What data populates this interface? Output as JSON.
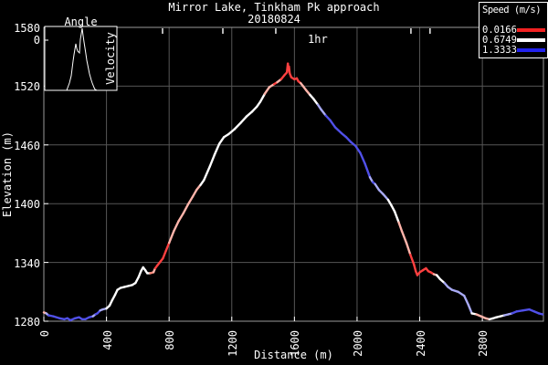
{
  "page": {
    "background": "#000000",
    "text_color": "#ffffff"
  },
  "chart_data": {
    "type": "line",
    "title": "Mirror Lake, Tinkham Pk approach",
    "subtitle": "20180824",
    "xlabel": "Distance (m)",
    "ylabel": "Elevation (m)",
    "xlim": [
      0,
      3190
    ],
    "ylim": [
      1280,
      1580
    ],
    "xticks": [
      0,
      400,
      800,
      1200,
      1600,
      2000,
      2400,
      2800
    ],
    "yticks": [
      1280,
      1340,
      1400,
      1460,
      1520,
      1580
    ],
    "grid": true,
    "grid_color": "#565656",
    "border_color": "#9a9a9a",
    "tick_color": "#ffffff",
    "time_axis": {
      "label": "1hr",
      "label_distance_m": 1740,
      "tick_distances_m": [
        758,
        1143,
        1481,
        2344,
        2466
      ]
    },
    "legend": {
      "title": "Speed (m/s)",
      "position": "top-right",
      "entries": [
        {
          "label": "0.0166",
          "color": "#f22222"
        },
        {
          "label": "0.6749",
          "color": "#ffffff"
        },
        {
          "label": "1.3333",
          "color": "#2222ee"
        }
      ]
    },
    "speed_color_map": {
      "r": "#ff4040",
      "lr": "#ff8878",
      "pr": "#ffb4aa",
      "w": "#ffffff",
      "lb": "#a8aaf4",
      "b": "#5050e8"
    },
    "profile": [
      [
        0,
        1289,
        "w"
      ],
      [
        15,
        1288,
        "pr"
      ],
      [
        30,
        1286,
        "lb"
      ],
      [
        60,
        1285,
        "b"
      ],
      [
        100,
        1283,
        "b"
      ],
      [
        130,
        1282,
        "b"
      ],
      [
        150,
        1283,
        "b"
      ],
      [
        170,
        1281,
        "b"
      ],
      [
        200,
        1283,
        "b"
      ],
      [
        225,
        1284,
        "b"
      ],
      [
        245,
        1282,
        "b"
      ],
      [
        265,
        1282,
        "b"
      ],
      [
        290,
        1284,
        "b"
      ],
      [
        313,
        1285,
        "b"
      ],
      [
        330,
        1287,
        "lb"
      ],
      [
        342,
        1288,
        "b"
      ],
      [
        360,
        1291,
        "b"
      ],
      [
        375,
        1292,
        "lb"
      ],
      [
        400,
        1293,
        "lb"
      ],
      [
        420,
        1296,
        "w"
      ],
      [
        435,
        1301,
        "w"
      ],
      [
        455,
        1307,
        "w"
      ],
      [
        470,
        1312,
        "w"
      ],
      [
        490,
        1314,
        "w"
      ],
      [
        515,
        1315,
        "w"
      ],
      [
        540,
        1316,
        "w"
      ],
      [
        565,
        1317,
        "w"
      ],
      [
        585,
        1319,
        "w"
      ],
      [
        605,
        1325,
        "w"
      ],
      [
        620,
        1331,
        "w"
      ],
      [
        634,
        1335,
        "w"
      ],
      [
        648,
        1332,
        "w"
      ],
      [
        660,
        1329,
        "w"
      ],
      [
        680,
        1329,
        "w"
      ],
      [
        700,
        1330,
        "lr"
      ],
      [
        711,
        1334,
        "pr"
      ],
      [
        725,
        1337,
        "r"
      ],
      [
        745,
        1341,
        "r"
      ],
      [
        760,
        1344,
        "r"
      ],
      [
        780,
        1352,
        "r"
      ],
      [
        800,
        1360,
        "r"
      ],
      [
        830,
        1372,
        "pr"
      ],
      [
        860,
        1382,
        "pr"
      ],
      [
        890,
        1390,
        "pr"
      ],
      [
        920,
        1399,
        "pr"
      ],
      [
        950,
        1407,
        "pr"
      ],
      [
        975,
        1414,
        "pr"
      ],
      [
        1000,
        1419,
        "pr"
      ],
      [
        1022,
        1424,
        "w"
      ],
      [
        1060,
        1438,
        "w"
      ],
      [
        1090,
        1450,
        "w"
      ],
      [
        1120,
        1461,
        "w"
      ],
      [
        1150,
        1468,
        "w"
      ],
      [
        1180,
        1471,
        "w"
      ],
      [
        1217,
        1476,
        "w"
      ],
      [
        1260,
        1483,
        "w"
      ],
      [
        1294,
        1489,
        "w"
      ],
      [
        1330,
        1494,
        "w"
      ],
      [
        1360,
        1499,
        "w"
      ],
      [
        1382,
        1504,
        "w"
      ],
      [
        1410,
        1512,
        "w"
      ],
      [
        1440,
        1519,
        "pr"
      ],
      [
        1470,
        1522,
        "pr"
      ],
      [
        1490,
        1524,
        "r"
      ],
      [
        1515,
        1527,
        "pr"
      ],
      [
        1535,
        1531,
        "r"
      ],
      [
        1552,
        1534,
        "r"
      ],
      [
        1558,
        1543,
        "r"
      ],
      [
        1562,
        1536,
        "r"
      ],
      [
        1565,
        1540,
        "r"
      ],
      [
        1570,
        1533,
        "r"
      ],
      [
        1580,
        1529,
        "r"
      ],
      [
        1600,
        1527,
        "r"
      ],
      [
        1615,
        1528,
        "r"
      ],
      [
        1625,
        1525,
        "r"
      ],
      [
        1640,
        1523,
        "r"
      ],
      [
        1655,
        1520,
        "pr"
      ],
      [
        1674,
        1516,
        "pr"
      ],
      [
        1700,
        1511,
        "pr"
      ],
      [
        1722,
        1507,
        "w"
      ],
      [
        1750,
        1501,
        "w"
      ],
      [
        1771,
        1496,
        "lb"
      ],
      [
        1800,
        1490,
        "lb"
      ],
      [
        1829,
        1485,
        "b"
      ],
      [
        1860,
        1478,
        "b"
      ],
      [
        1900,
        1472,
        "b"
      ],
      [
        1930,
        1468,
        "b"
      ],
      [
        1960,
        1463,
        "b"
      ],
      [
        1990,
        1459,
        "b"
      ],
      [
        2020,
        1452,
        "b"
      ],
      [
        2050,
        1441,
        "b"
      ],
      [
        2082,
        1427,
        "b"
      ],
      [
        2100,
        1422,
        "lb"
      ],
      [
        2115,
        1420,
        "b"
      ],
      [
        2140,
        1414,
        "lb"
      ],
      [
        2165,
        1410,
        "lb"
      ],
      [
        2198,
        1404,
        "lb"
      ],
      [
        2220,
        1398,
        "w"
      ],
      [
        2240,
        1392,
        "w"
      ],
      [
        2266,
        1381,
        "w"
      ],
      [
        2286,
        1372,
        "pr"
      ],
      [
        2315,
        1360,
        "pr"
      ],
      [
        2340,
        1348,
        "pr"
      ],
      [
        2363,
        1338,
        "r"
      ],
      [
        2375,
        1331,
        "r"
      ],
      [
        2385,
        1327,
        "r"
      ],
      [
        2400,
        1330,
        "r"
      ],
      [
        2420,
        1332,
        "r"
      ],
      [
        2440,
        1334,
        "r"
      ],
      [
        2455,
        1331,
        "r"
      ],
      [
        2470,
        1330,
        "r"
      ],
      [
        2490,
        1328,
        "r"
      ],
      [
        2509,
        1327,
        "pr"
      ],
      [
        2530,
        1323,
        "w"
      ],
      [
        2558,
        1319,
        "w"
      ],
      [
        2580,
        1315,
        "lb"
      ],
      [
        2606,
        1312,
        "lb"
      ],
      [
        2645,
        1310,
        "lb"
      ],
      [
        2684,
        1306,
        "lb"
      ],
      [
        2710,
        1297,
        "lb"
      ],
      [
        2733,
        1288,
        "lb"
      ],
      [
        2762,
        1287,
        "w"
      ],
      [
        2791,
        1285,
        "pr"
      ],
      [
        2820,
        1283,
        "pr"
      ],
      [
        2845,
        1282,
        "pr"
      ],
      [
        2870,
        1283,
        "w"
      ],
      [
        2890,
        1284,
        "w"
      ],
      [
        2915,
        1285,
        "w"
      ],
      [
        2940,
        1286,
        "w"
      ],
      [
        2965,
        1287,
        "lb"
      ],
      [
        2990,
        1288,
        "lb"
      ],
      [
        3020,
        1290,
        "b"
      ],
      [
        3060,
        1291,
        "b"
      ],
      [
        3100,
        1292,
        "b"
      ],
      [
        3130,
        1290,
        "b"
      ],
      [
        3160,
        1288,
        "b"
      ],
      [
        3185,
        1287,
        "b"
      ]
    ],
    "inset": {
      "title": "Angle",
      "side_label": "Velocity",
      "tick_label": "0",
      "curve": [
        [
          24,
          70
        ],
        [
          27,
          62
        ],
        [
          29,
          54
        ],
        [
          31,
          38
        ],
        [
          32,
          31
        ],
        [
          34,
          19
        ],
        [
          35,
          24
        ],
        [
          36,
          27
        ],
        [
          38,
          29
        ],
        [
          39,
          14
        ],
        [
          41,
          2
        ],
        [
          42,
          10
        ],
        [
          43,
          17
        ],
        [
          45,
          30
        ],
        [
          46,
          37
        ],
        [
          48,
          47
        ],
        [
          49,
          52
        ],
        [
          51,
          59
        ],
        [
          52,
          62
        ],
        [
          54,
          67
        ],
        [
          55,
          69
        ],
        [
          57,
          70
        ]
      ]
    }
  }
}
